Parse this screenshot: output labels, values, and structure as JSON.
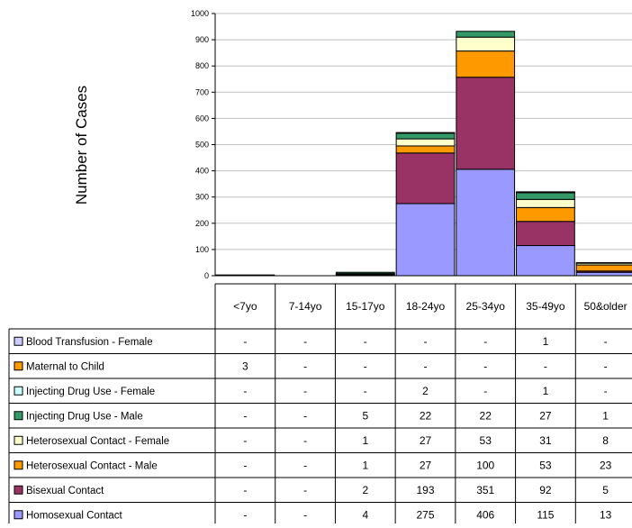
{
  "chart_data": {
    "type": "bar",
    "stacked": true,
    "ylabel": "Number of Cases",
    "ylim": [
      0,
      1000
    ],
    "yticks": [
      0,
      100,
      200,
      300,
      400,
      500,
      600,
      700,
      800,
      900,
      1000
    ],
    "grid": true,
    "legend": "data-table-left",
    "categories": [
      "<7yo",
      "7-14yo",
      "15-17yo",
      "18-24yo",
      "25-34yo",
      "35-49yo",
      "50&older"
    ],
    "series": [
      {
        "name": "Homosexual Contact",
        "color": "#9999ff",
        "values": [
          null,
          null,
          4,
          275,
          406,
          115,
          13
        ],
        "labels": [
          "-",
          "-",
          "4",
          "275",
          "406",
          "115",
          "13"
        ]
      },
      {
        "name": "Bisexual Contact",
        "color": "#993366",
        "values": [
          null,
          null,
          2,
          193,
          351,
          92,
          5
        ],
        "labels": [
          "-",
          "-",
          "2",
          "193",
          "351",
          "92",
          "5"
        ]
      },
      {
        "name": "Heterosexual Contact - Male",
        "color": "#ff9900",
        "values": [
          null,
          null,
          1,
          27,
          100,
          53,
          23
        ],
        "labels": [
          "-",
          "-",
          "1",
          "27",
          "100",
          "53",
          "23"
        ]
      },
      {
        "name": "Heterosexual Contact - Female",
        "color": "#ffffcc",
        "values": [
          null,
          null,
          1,
          27,
          53,
          31,
          8
        ],
        "labels": [
          "-",
          "-",
          "1",
          "27",
          "53",
          "31",
          "8"
        ]
      },
      {
        "name": "Injecting Drug Use - Male",
        "color": "#339966",
        "values": [
          null,
          null,
          5,
          22,
          22,
          27,
          1
        ],
        "labels": [
          "-",
          "-",
          "5",
          "22",
          "22",
          "27",
          "1"
        ]
      },
      {
        "name": "Injecting Drug Use - Female",
        "color": "#ccffff",
        "values": [
          null,
          null,
          null,
          2,
          null,
          1,
          null
        ],
        "labels": [
          "-",
          "-",
          "-",
          "2",
          "-",
          "1",
          "-"
        ]
      },
      {
        "name": "Maternal to Child",
        "color": "#ff9900",
        "values": [
          3,
          null,
          null,
          null,
          null,
          null,
          null
        ],
        "labels": [
          "3",
          "-",
          "-",
          "-",
          "-",
          "-",
          "-"
        ]
      },
      {
        "name": "Blood Transfusion - Female",
        "color": "#ccccff",
        "values": [
          null,
          null,
          null,
          null,
          null,
          1,
          null
        ],
        "labels": [
          "-",
          "-",
          "-",
          "-",
          "-",
          "1",
          "-"
        ]
      }
    ]
  }
}
